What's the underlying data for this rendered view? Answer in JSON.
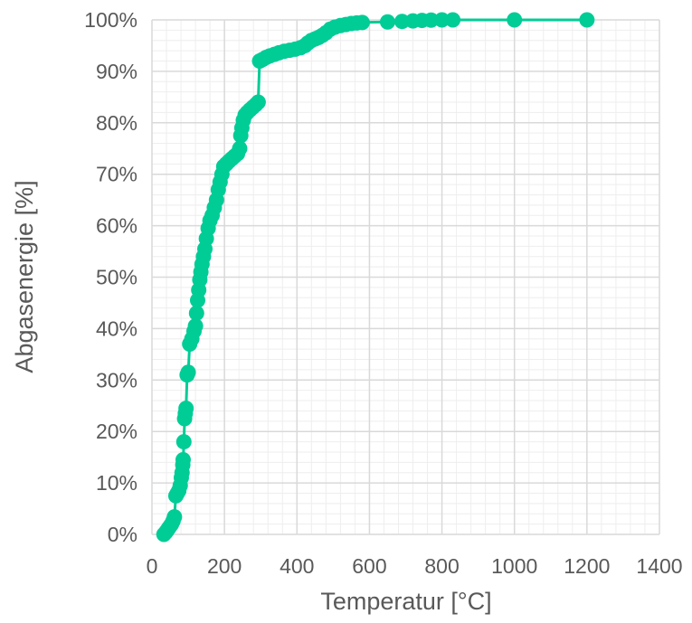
{
  "chart_data": {
    "type": "scatter",
    "mode": "lines+markers",
    "title": "",
    "xlabel": "Temperatur [°C]",
    "ylabel": "Abgasenergie [%]",
    "xlim": [
      0,
      1400
    ],
    "ylim": [
      0,
      100
    ],
    "xticks": [
      0,
      200,
      400,
      600,
      800,
      1000,
      1200,
      1400
    ],
    "yticks": [
      0,
      10,
      20,
      30,
      40,
      50,
      60,
      70,
      80,
      90,
      100
    ],
    "xtick_labels": [
      "0",
      "200",
      "400",
      "600",
      "800",
      "1000",
      "1200",
      "1400"
    ],
    "ytick_labels": [
      "0%",
      "10%",
      "20%",
      "30%",
      "40%",
      "50%",
      "60%",
      "70%",
      "80%",
      "90%",
      "100%"
    ],
    "grid": true,
    "minor_grid": true,
    "legend": "none",
    "colors": {
      "series": "#00CC96",
      "grid_major": "#D9D9D9",
      "grid_minor": "#EEEEEE",
      "text": "#595959"
    },
    "series": [
      {
        "points": [
          [
            33,
            0
          ],
          [
            38,
            0.4
          ],
          [
            42,
            0.8
          ],
          [
            46,
            1.2
          ],
          [
            50,
            1.6
          ],
          [
            54,
            2.0
          ],
          [
            58,
            2.6
          ],
          [
            62,
            3.4
          ],
          [
            66,
            7.5
          ],
          [
            70,
            8.0
          ],
          [
            74,
            8.5
          ],
          [
            78,
            9.5
          ],
          [
            81,
            11.0
          ],
          [
            83,
            12.0
          ],
          [
            85,
            13.5
          ],
          [
            86,
            14.5
          ],
          [
            88,
            18.0
          ],
          [
            90,
            22.5
          ],
          [
            92,
            23.5
          ],
          [
            94,
            24.5
          ],
          [
            97,
            31.0
          ],
          [
            100,
            31.5
          ],
          [
            104,
            37.0
          ],
          [
            110,
            38.0
          ],
          [
            116,
            39.5
          ],
          [
            120,
            40.5
          ],
          [
            123,
            43.0
          ],
          [
            126,
            45.5
          ],
          [
            129,
            47.5
          ],
          [
            132,
            49.5
          ],
          [
            135,
            51.0
          ],
          [
            138,
            52.5
          ],
          [
            142,
            54.0
          ],
          [
            146,
            55.5
          ],
          [
            150,
            57.5
          ],
          [
            155,
            59.5
          ],
          [
            160,
            61.0
          ],
          [
            166,
            62.0
          ],
          [
            172,
            63.5
          ],
          [
            178,
            65.0
          ],
          [
            183,
            67.0
          ],
          [
            188,
            68.5
          ],
          [
            193,
            70.0
          ],
          [
            198,
            71.5
          ],
          [
            205,
            72.0
          ],
          [
            212,
            72.5
          ],
          [
            220,
            73.0
          ],
          [
            228,
            73.5
          ],
          [
            236,
            74.0
          ],
          [
            242,
            75.0
          ],
          [
            245,
            77.5
          ],
          [
            248,
            79.0
          ],
          [
            252,
            80.5
          ],
          [
            257,
            81.5
          ],
          [
            263,
            82.0
          ],
          [
            270,
            82.5
          ],
          [
            278,
            83.0
          ],
          [
            286,
            83.5
          ],
          [
            293,
            84.0
          ],
          [
            297,
            92.0
          ],
          [
            305,
            92.3
          ],
          [
            315,
            92.7
          ],
          [
            325,
            93.0
          ],
          [
            338,
            93.3
          ],
          [
            350,
            93.6
          ],
          [
            365,
            93.9
          ],
          [
            380,
            94.1
          ],
          [
            395,
            94.3
          ],
          [
            410,
            94.6
          ],
          [
            422,
            95.0
          ],
          [
            430,
            95.5
          ],
          [
            440,
            96.0
          ],
          [
            450,
            96.3
          ],
          [
            460,
            96.6
          ],
          [
            470,
            97.0
          ],
          [
            480,
            97.5
          ],
          [
            492,
            98.2
          ],
          [
            505,
            98.6
          ],
          [
            520,
            98.9
          ],
          [
            535,
            99.1
          ],
          [
            550,
            99.3
          ],
          [
            565,
            99.4
          ],
          [
            580,
            99.5
          ],
          [
            650,
            99.6
          ],
          [
            690,
            99.7
          ],
          [
            720,
            99.8
          ],
          [
            745,
            99.9
          ],
          [
            770,
            99.95
          ],
          [
            800,
            100
          ],
          [
            830,
            100
          ],
          [
            1000,
            100
          ],
          [
            1200,
            100
          ]
        ]
      }
    ]
  }
}
